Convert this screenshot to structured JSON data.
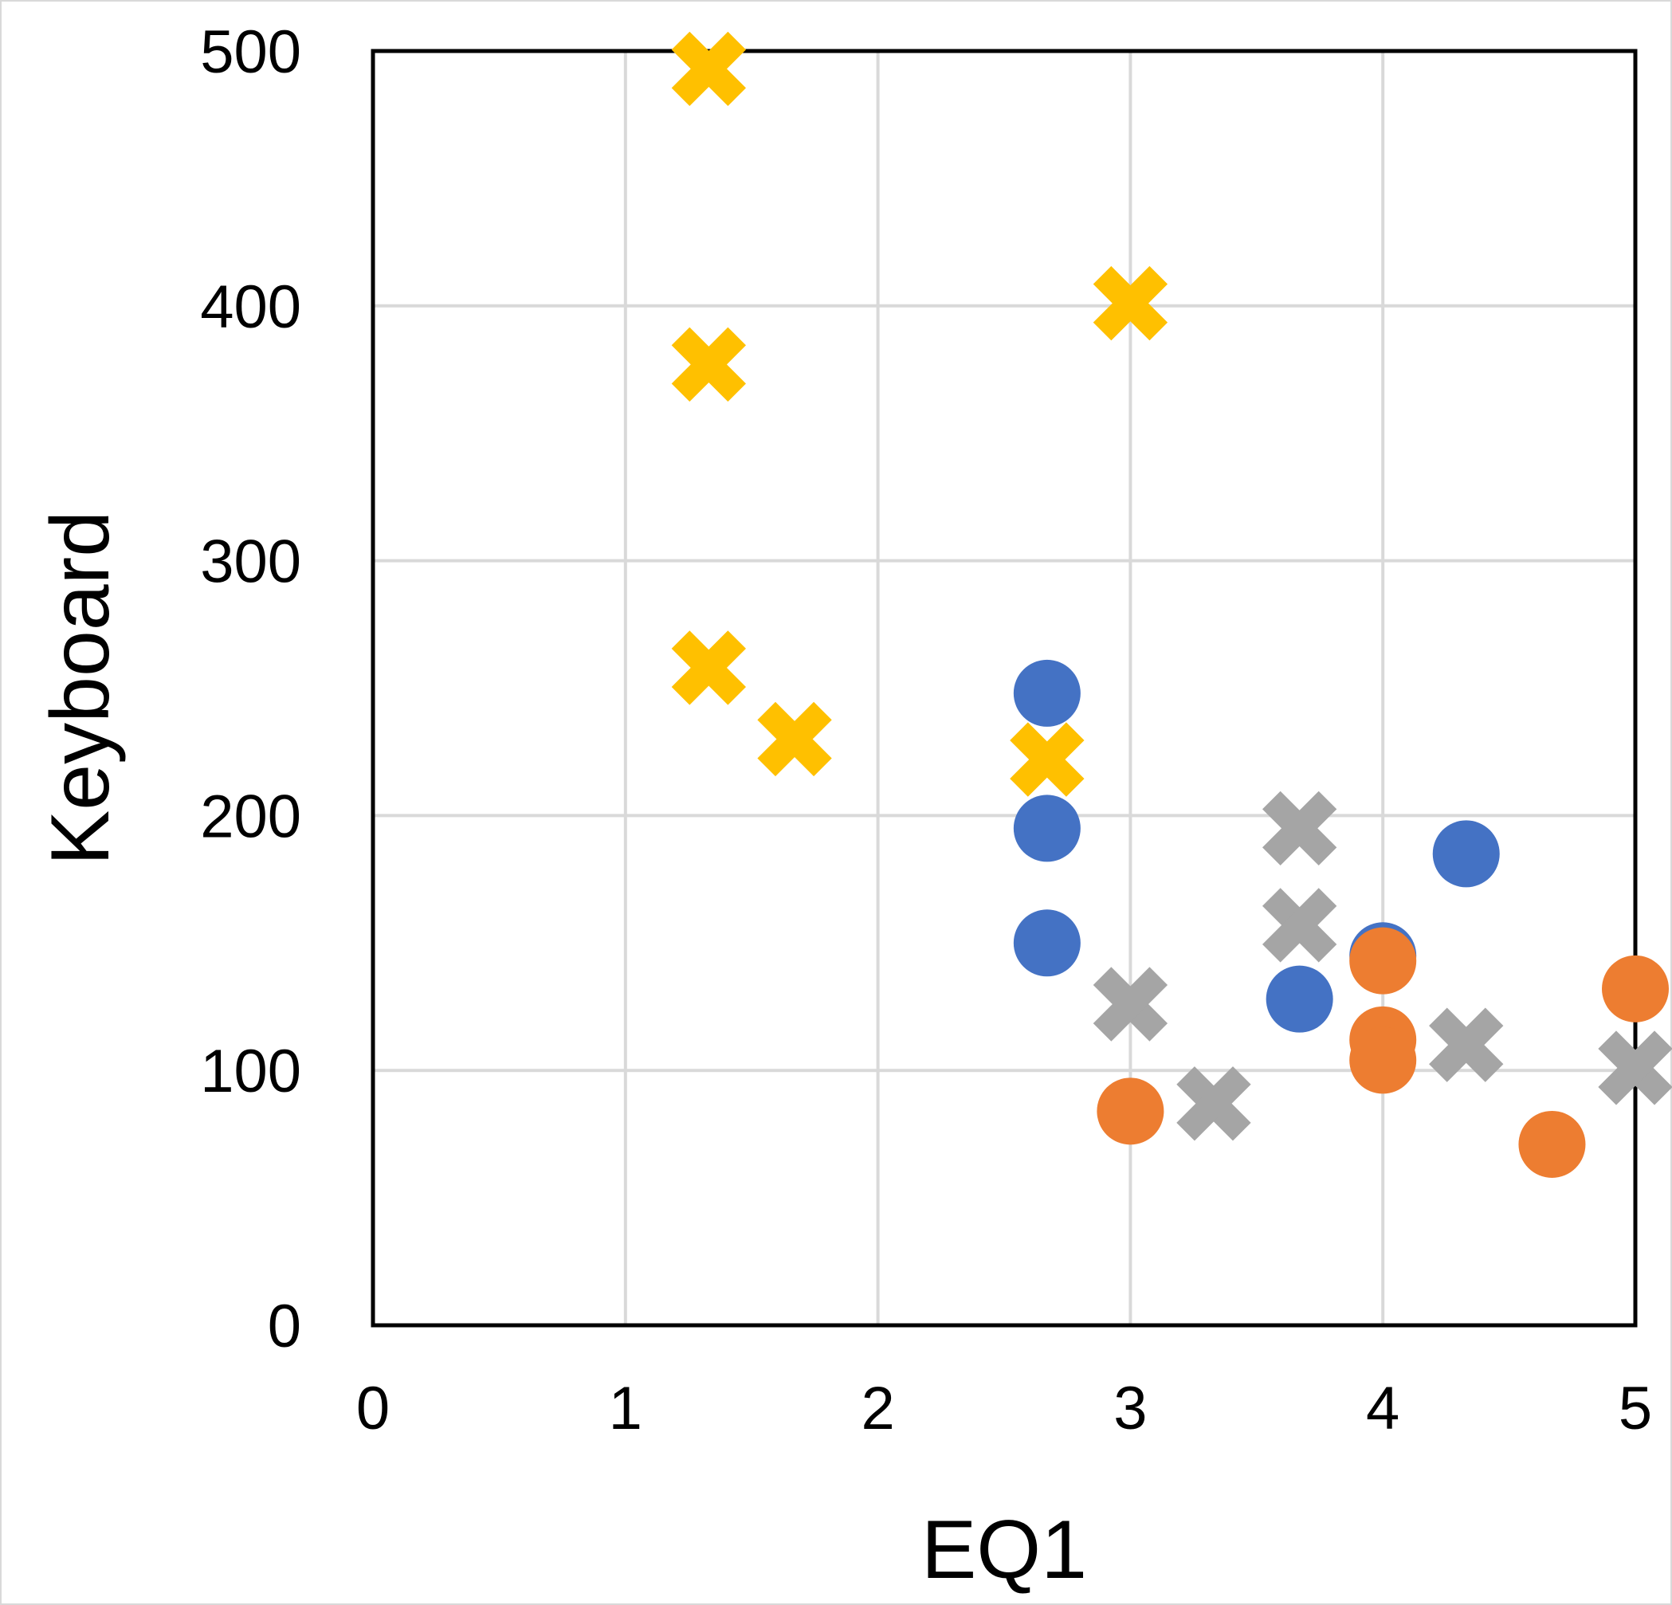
{
  "chart_data": {
    "type": "scatter",
    "xlabel": "EQ1",
    "ylabel": "Keyboard",
    "xlim": [
      0,
      5
    ],
    "ylim": [
      0,
      500
    ],
    "x_ticks": [
      "0",
      "1",
      "2",
      "3",
      "4",
      "5"
    ],
    "y_ticks": [
      "0",
      "100",
      "200",
      "300",
      "400",
      "500"
    ],
    "grid": true,
    "legend": "none",
    "series": [
      {
        "marker": "circle",
        "color": "#4472C4",
        "points": [
          [
            2.67,
            248
          ],
          [
            2.67,
            195
          ],
          [
            2.67,
            150
          ],
          [
            3.67,
            128
          ],
          [
            4.0,
            145
          ],
          [
            4.33,
            185
          ]
        ]
      },
      {
        "marker": "circle",
        "color": "#ED7D31",
        "points": [
          [
            3.0,
            84
          ],
          [
            4.0,
            143
          ],
          [
            4.0,
            112
          ],
          [
            4.0,
            104
          ],
          [
            4.67,
            71
          ],
          [
            5.0,
            132
          ]
        ]
      },
      {
        "marker": "x",
        "color": "#A5A5A5",
        "points": [
          [
            3.0,
            126
          ],
          [
            3.33,
            87
          ],
          [
            3.67,
            195
          ],
          [
            3.67,
            157
          ],
          [
            4.33,
            110
          ],
          [
            5.0,
            101
          ]
        ]
      },
      {
        "marker": "x",
        "color": "#FFC000",
        "points": [
          [
            1.33,
            493
          ],
          [
            1.33,
            377
          ],
          [
            1.33,
            258
          ],
          [
            1.67,
            230
          ],
          [
            2.67,
            222
          ],
          [
            3.0,
            401
          ]
        ]
      }
    ]
  }
}
